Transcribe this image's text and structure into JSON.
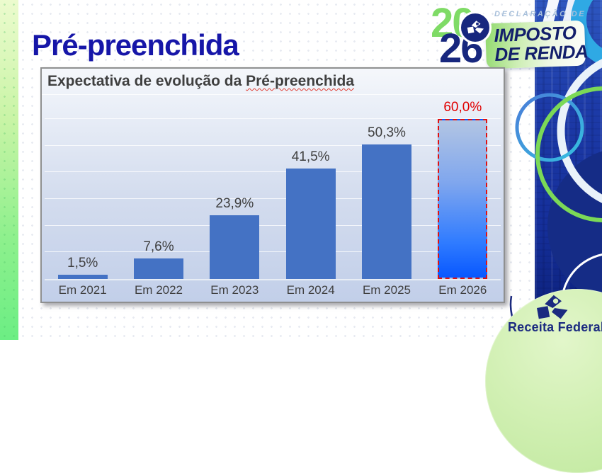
{
  "slide": {
    "title": "Pré-preenchida"
  },
  "logo_2026": {
    "year_top": "20",
    "year_bottom": "26",
    "tagline": "DECLARAÇÃO DE",
    "product_line1": "IMPOSTO",
    "product_line2": "DE RENDA"
  },
  "footer_logo": {
    "agency": "Receita Federal"
  },
  "chart": {
    "header_prefix": "Expectativa de evolução da ",
    "header_term": "Pré-preenchida"
  },
  "chart_data": {
    "type": "bar",
    "title": "Expectativa de evolução da Pré-preenchida",
    "categories": [
      "Em 2021",
      "Em 2022",
      "Em 2023",
      "Em 2024",
      "Em 2025",
      "Em 2026"
    ],
    "values": [
      1.5,
      7.6,
      23.9,
      41.5,
      50.3,
      60.0
    ],
    "labels": [
      "1,5%",
      "7,6%",
      "23,9%",
      "41,5%",
      "50,3%",
      "60,0%"
    ],
    "xlabel": "",
    "ylabel": "",
    "ylim": [
      0,
      69
    ],
    "gridline_step": 10,
    "gridline_max": 60,
    "grid": "on",
    "legend": "none",
    "bar_color": "#4472C4",
    "label_color": "#3F3F3F",
    "highlight": {
      "index": 5,
      "style": "dashed-outline-forecast",
      "label_color": "#E00000",
      "border_color": "#E01111",
      "fill_top": "#B2C5E3",
      "fill_bottom": "#0857FF"
    }
  },
  "brand_colors": {
    "title_blue": "#1616A8",
    "navy": "#17277E",
    "logo_green": "#7FDB66",
    "strip_green_top": "#ECFBCE",
    "strip_green_bottom": "#6CEE84",
    "photo_blue": "#16309C"
  }
}
